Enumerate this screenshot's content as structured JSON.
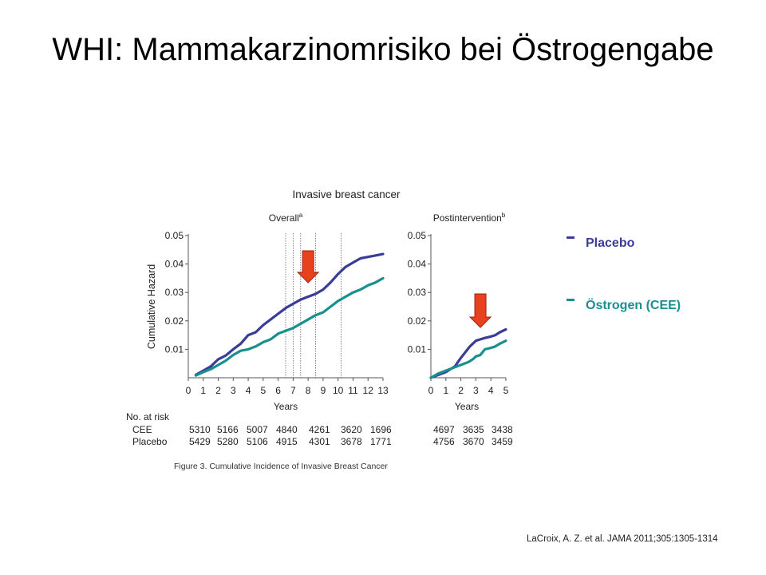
{
  "slide_title": "WHI: Mammakarzinomrisiko bei Östrogengabe",
  "legend": [
    {
      "label": "Placebo",
      "color": "#3B3B98"
    },
    {
      "label": "Östrogen (CEE)",
      "color": "#1A8F8F"
    }
  ],
  "caption": "Figure 3. Cumulative Incidence of Invasive Breast Cancer",
  "reference": "LaCroix, A. Z. et al. JAMA 2011;305:1305-1314",
  "colors": {
    "placebo": "#3B3B98",
    "cee": "#1A8F8F",
    "arrow": "#E8411E",
    "arrow_outline": "#A02010"
  },
  "chart_data": {
    "type": "line",
    "title": "Invasive breast cancer",
    "ylabel": "Cumulative Hazard",
    "xlabel": "Years",
    "risk_table": {
      "header": "No. at risk",
      "row_labels": [
        "CEE",
        "Placebo"
      ]
    },
    "panels": [
      {
        "title": "Overall",
        "title_sup": "a",
        "x_ticks": [
          0,
          1,
          2,
          3,
          4,
          5,
          6,
          7,
          8,
          9,
          10,
          11,
          12,
          13
        ],
        "xlim": [
          0,
          13
        ],
        "y_ticks": [
          "0.05",
          "0.04",
          "0.03",
          "0.02",
          "0.01"
        ],
        "ylim": [
          0,
          0.05
        ],
        "vlines": [
          6.5,
          7,
          7.5,
          8.5,
          10.2
        ],
        "arrow_at_year": 8,
        "series": [
          {
            "key": "placebo",
            "x": [
              0.5,
              1,
              1.5,
              2,
              2.5,
              3,
              3.5,
              4,
              4.5,
              5,
              5.5,
              6,
              6.5,
              7,
              7.5,
              8,
              8.5,
              9,
              9.5,
              10,
              10.5,
              11,
              11.5,
              12,
              12.5,
              13
            ],
            "y": [
              0.001,
              0.0025,
              0.004,
              0.0065,
              0.0078,
              0.01,
              0.012,
              0.015,
              0.016,
              0.0185,
              0.0205,
              0.0225,
              0.0245,
              0.026,
              0.0275,
              0.0285,
              0.0295,
              0.031,
              0.0335,
              0.0365,
              0.039,
              0.0405,
              0.042,
              0.0425,
              0.043,
              0.0435
            ]
          },
          {
            "key": "cee",
            "x": [
              0.5,
              1,
              1.5,
              2,
              2.5,
              3,
              3.5,
              4,
              4.5,
              5,
              5.5,
              6,
              6.5,
              7,
              7.5,
              8,
              8.5,
              9,
              9.5,
              10,
              10.5,
              11,
              11.5,
              12,
              12.5,
              13
            ],
            "y": [
              0.0008,
              0.002,
              0.003,
              0.0045,
              0.006,
              0.008,
              0.0095,
              0.01,
              0.011,
              0.0125,
              0.0135,
              0.0155,
              0.0165,
              0.0175,
              0.019,
              0.0205,
              0.022,
              0.023,
              0.025,
              0.027,
              0.0285,
              0.03,
              0.031,
              0.0325,
              0.0335,
              0.035
            ]
          }
        ],
        "at_risk": {
          "CEE": [
            "5310",
            "5166",
            "5007",
            "4840",
            "4261",
            "3620",
            "1696"
          ],
          "Placebo": [
            "5429",
            "5280",
            "5106",
            "4915",
            "4301",
            "3678",
            "1771"
          ]
        }
      },
      {
        "title": "Postintervention",
        "title_sup": "b",
        "x_ticks": [
          0,
          1,
          2,
          3,
          4,
          5
        ],
        "xlim": [
          0,
          5
        ],
        "y_ticks": [
          "0.05",
          "0.04",
          "0.03",
          "0.02",
          "0.01"
        ],
        "ylim": [
          0,
          0.05
        ],
        "arrow_at_year": 3.3,
        "series": [
          {
            "key": "placebo",
            "x": [
              0,
              0.5,
              1,
              1.3,
              1.6,
              2,
              2.3,
              2.6,
              3,
              3.3,
              3.6,
              4,
              4.3,
              4.6,
              5
            ],
            "y": [
              0,
              0.001,
              0.002,
              0.003,
              0.004,
              0.007,
              0.009,
              0.011,
              0.013,
              0.0135,
              0.014,
              0.0145,
              0.015,
              0.016,
              0.017
            ]
          },
          {
            "key": "cee",
            "x": [
              0,
              0.5,
              1,
              1.5,
              2,
              2.5,
              2.8,
              3,
              3.3,
              3.6,
              4,
              4.3,
              4.6,
              5
            ],
            "y": [
              0,
              0.0015,
              0.0025,
              0.0035,
              0.0045,
              0.0055,
              0.0065,
              0.0075,
              0.008,
              0.01,
              0.0105,
              0.011,
              0.012,
              0.013
            ]
          }
        ],
        "at_risk": {
          "CEE": [
            "4697",
            "3635",
            "3438"
          ],
          "Placebo": [
            "4756",
            "3670",
            "3459"
          ]
        }
      }
    ]
  }
}
